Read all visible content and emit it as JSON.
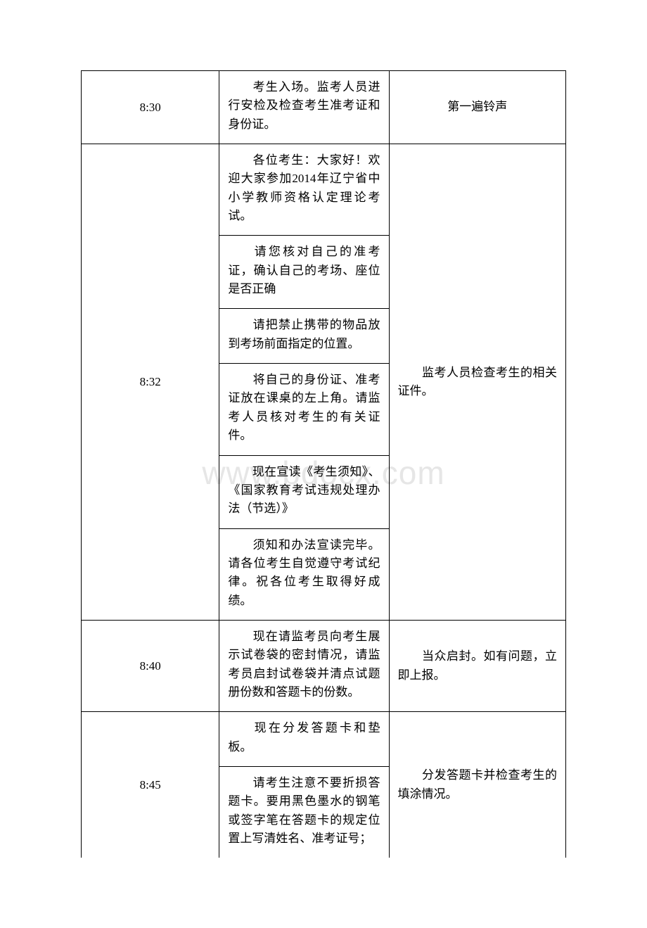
{
  "watermark": "www.bdocx.com",
  "rows": [
    {
      "time": "8:30",
      "contents": [
        "考生入场。监考人员进行安检及检查考生准考证和身份证。"
      ],
      "note": "第一遍铃声",
      "note_align": "center"
    },
    {
      "time": "8:32",
      "contents": [
        "各位考生：大家好！欢迎大家参加2014年辽宁省中小学教师资格认定理论考试。",
        "请您核对自己的准考证，确认自己的考场、座位是否正确",
        "请把禁止携带的物品放到考场前面指定的位置。",
        "将自己的身份证、准考证放在课桌的左上角。请监考人员核对考生的有关证件。",
        "现在宣读《考生须知》、《国家教育考试违规处理办法（节选）》",
        "须知和办法宣读完毕。请各位考生自觉遵守考试纪律。祝各位考生取得好成绩。"
      ],
      "note": "监考人员检查考生的相关证件。"
    },
    {
      "time": "8:40",
      "contents": [
        "现在请监考员向考生展示试卷袋的密封情况，请监考员启封试卷袋并清点试题册份数和答题卡的份数。"
      ],
      "note": "当众启封。如有问题，立即上报。"
    },
    {
      "time": "8:45",
      "contents": [
        "现在分发答题卡和垫板。",
        "请考生注意不要折损答题卡。要用黑色墨水的钢笔或签字笔在答题卡的规定位置上写清姓名、准考证号；"
      ],
      "note": "分发答题卡并检查考生的填涂情况。",
      "last_open": true
    }
  ]
}
